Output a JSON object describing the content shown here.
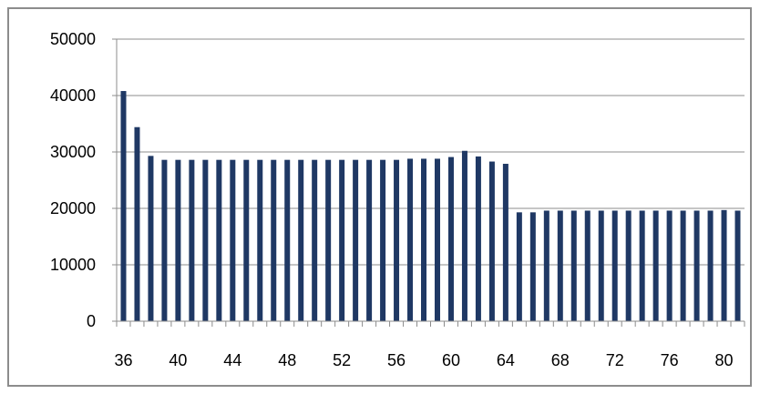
{
  "chart_data": {
    "type": "bar",
    "title": "",
    "xlabel": "",
    "ylabel": "",
    "ylim": [
      0,
      50000
    ],
    "y_ticks": [
      0,
      10000,
      20000,
      30000,
      40000,
      50000
    ],
    "y_tick_labels": [
      "0",
      "10000",
      "20000",
      "30000",
      "40000",
      "50000"
    ],
    "categories": [
      36,
      37,
      38,
      39,
      40,
      41,
      42,
      43,
      44,
      45,
      46,
      47,
      48,
      49,
      50,
      51,
      52,
      53,
      54,
      55,
      56,
      57,
      58,
      59,
      60,
      61,
      62,
      63,
      64,
      65,
      66,
      67,
      68,
      69,
      70,
      71,
      72,
      73,
      74,
      75,
      76,
      77,
      78,
      79,
      80,
      81
    ],
    "x_tick_labels": [
      "36",
      "40",
      "44",
      "48",
      "52",
      "56",
      "60",
      "64",
      "68",
      "72",
      "76",
      "80"
    ],
    "x_tick_label_categories": [
      36,
      40,
      44,
      48,
      52,
      56,
      60,
      64,
      68,
      72,
      76,
      80
    ],
    "values": [
      40800,
      34400,
      29300,
      28600,
      28600,
      28600,
      28600,
      28600,
      28600,
      28600,
      28600,
      28600,
      28600,
      28600,
      28600,
      28600,
      28600,
      28600,
      28600,
      28600,
      28600,
      28800,
      28800,
      28800,
      29100,
      30200,
      29200,
      28300,
      27900,
      19300,
      19300,
      19600,
      19600,
      19600,
      19600,
      19600,
      19600,
      19600,
      19600,
      19600,
      19600,
      19600,
      19600,
      19600,
      19700,
      19600
    ],
    "grid": true,
    "legend": "none",
    "colors": {
      "bar": "#1f3864",
      "grid": "#8c8c8c",
      "axis": "#8c8c8c",
      "frame": "#8c8c8c"
    }
  }
}
